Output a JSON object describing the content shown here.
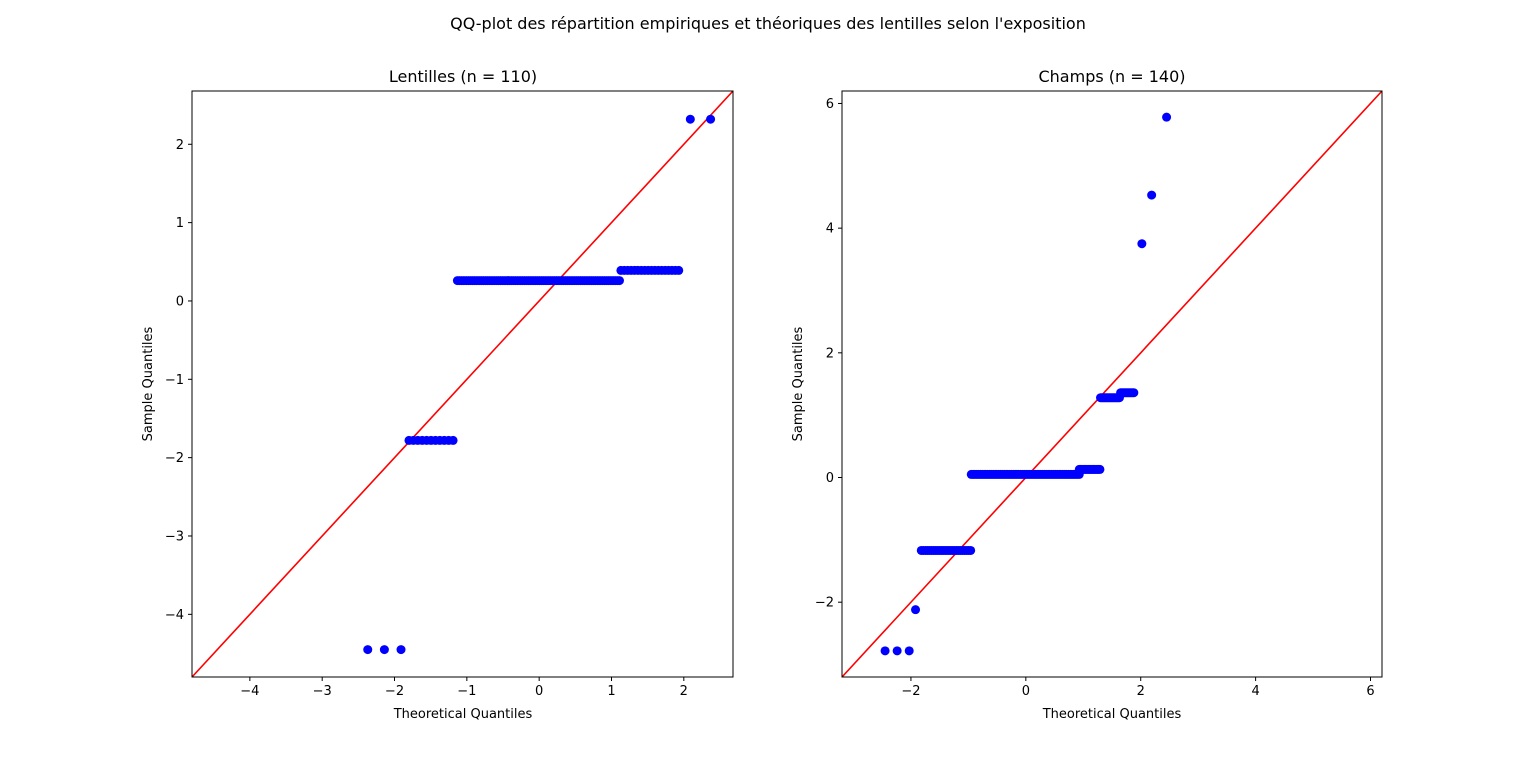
{
  "figure": {
    "suptitle": "QQ-plot des répartition empiriques et théoriques des lentilles selon l'exposition"
  },
  "chart_data": [
    {
      "type": "scatter",
      "title": "Lentilles (n = 110)",
      "xlabel": "Theoretical Quantiles",
      "ylabel": "Sample Quantiles",
      "xlim": [
        -4.8,
        2.68
      ],
      "ylim": [
        -4.8,
        2.68
      ],
      "xticks": [
        -4,
        -3,
        -2,
        -1,
        0,
        1,
        2
      ],
      "yticks": [
        -4,
        -3,
        -2,
        -1,
        0,
        1,
        2
      ],
      "grid": false,
      "reference_line": {
        "type": "45-degree",
        "color": "#ff0000"
      },
      "point_color": "#0000ff",
      "groups": [
        {
          "count": 3,
          "x_from": -2.37,
          "x_to": -1.91,
          "y": -4.45
        },
        {
          "count": 11,
          "x_from": -1.8,
          "x_to": -1.19,
          "y": -1.78
        },
        {
          "count": 76,
          "x_from": -1.13,
          "x_to": 1.11,
          "y": 0.26
        },
        {
          "count": 18,
          "x_from": 1.13,
          "x_to": 1.93,
          "y": 0.39
        },
        {
          "count": 2,
          "x_from": 2.09,
          "x_to": 2.37,
          "y": 2.32
        }
      ]
    },
    {
      "type": "scatter",
      "title": "Champs (n = 140)",
      "xlabel": "Theoretical Quantiles",
      "ylabel": "Sample Quantiles",
      "xlim": [
        -3.2,
        6.2
      ],
      "ylim": [
        -3.2,
        6.2
      ],
      "xticks": [
        -2,
        0,
        2,
        4,
        6
      ],
      "yticks": [
        -2,
        0,
        2,
        4,
        6
      ],
      "grid": false,
      "reference_line": {
        "type": "45-degree",
        "color": "#ff0000"
      },
      "point_color": "#0000ff",
      "groups": [
        {
          "count": 3,
          "x_from": -2.45,
          "x_to": -2.03,
          "y": -2.78
        },
        {
          "count": 1,
          "x_from": -1.92,
          "x_to": -1.92,
          "y": -2.12
        },
        {
          "count": 25,
          "x_from": -1.82,
          "x_to": -0.96,
          "y": -1.17
        },
        {
          "count": 60,
          "x_from": -0.95,
          "x_to": 0.93,
          "y": 0.05
        },
        {
          "count": 17,
          "x_from": 0.93,
          "x_to": 1.29,
          "y": 0.13
        },
        {
          "count": 19,
          "x_from": 1.3,
          "x_to": 1.63,
          "y": 1.28
        },
        {
          "count": 12,
          "x_from": 1.65,
          "x_to": 1.88,
          "y": 1.36
        },
        {
          "count": 1,
          "x_from": 2.02,
          "x_to": 2.02,
          "y": 3.75
        },
        {
          "count": 1,
          "x_from": 2.19,
          "x_to": 2.19,
          "y": 4.53
        },
        {
          "count": 1,
          "x_from": 2.45,
          "x_to": 2.45,
          "y": 5.78
        }
      ]
    }
  ]
}
